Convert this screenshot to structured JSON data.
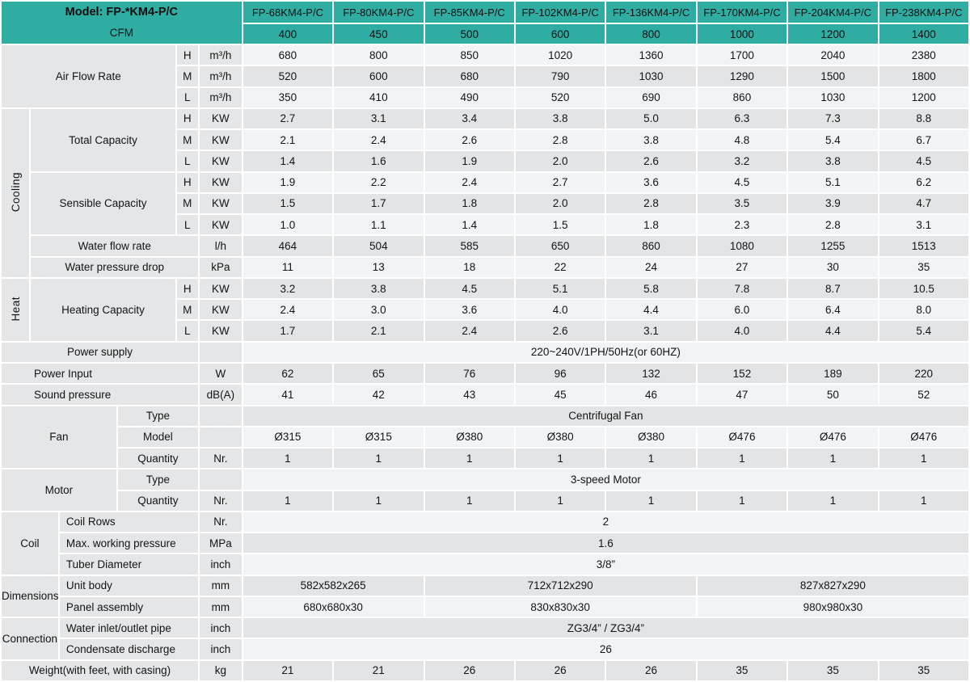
{
  "colors": {
    "header_teal": "#30ada3",
    "label_gray": "#e4e6e8",
    "row_light": "#f0f4f6",
    "row_dark": "#e2e4e6"
  },
  "header": {
    "model_label": "Model: FP-*KM4-P/C",
    "cfm_label": "CFM",
    "models": [
      "FP-68KM4-P/C",
      "FP-80KM4-P/C",
      "FP-85KM4-P/C",
      "FP-102KM4-P/C",
      "FP-136KM4-P/C",
      "FP-170KM4-P/C",
      "FP-204KM4-P/C",
      "FP-238KM4-P/C"
    ],
    "cfm_values": [
      "400",
      "450",
      "500",
      "600",
      "800",
      "1000",
      "1200",
      "1400"
    ]
  },
  "body": [
    {
      "name": "air-flow-rate-h",
      "cells": [
        {
          "t": "Air Flow Rate",
          "cs": 4,
          "rs": 3
        },
        {
          "t": "H"
        },
        {
          "t": "m³/h"
        }
      ],
      "data": {
        "values": [
          "680",
          "800",
          "850",
          "1020",
          "1360",
          "1700",
          "2040",
          "2380"
        ]
      }
    },
    {
      "name": "air-flow-rate-m",
      "cells": [
        {
          "t": "M"
        },
        {
          "t": "m³/h"
        }
      ],
      "data": {
        "values": [
          "520",
          "600",
          "680",
          "790",
          "1030",
          "1290",
          "1500",
          "1800"
        ]
      }
    },
    {
      "name": "air-flow-rate-l",
      "cells": [
        {
          "t": "L"
        },
        {
          "t": "m³/h"
        }
      ],
      "data": {
        "values": [
          "350",
          "410",
          "490",
          "520",
          "690",
          "860",
          "1030",
          "1200"
        ]
      }
    },
    {
      "name": "cooling-total-capacity-h",
      "cells": [
        {
          "t": "Cooling",
          "cls": "vlab",
          "rs": 8
        },
        {
          "t": "Total Capacity",
          "cs": 3,
          "rs": 3
        },
        {
          "t": "H"
        },
        {
          "t": "KW"
        }
      ],
      "data": {
        "values": [
          "2.7",
          "3.1",
          "3.4",
          "3.8",
          "5.0",
          "6.3",
          "7.3",
          "8.8"
        ]
      }
    },
    {
      "name": "cooling-total-capacity-m",
      "cells": [
        {
          "t": "M"
        },
        {
          "t": "KW"
        }
      ],
      "data": {
        "values": [
          "2.1",
          "2.4",
          "2.6",
          "2.8",
          "3.8",
          "4.8",
          "5.4",
          "6.7"
        ]
      }
    },
    {
      "name": "cooling-total-capacity-l",
      "cells": [
        {
          "t": "L"
        },
        {
          "t": "KW"
        }
      ],
      "data": {
        "values": [
          "1.4",
          "1.6",
          "1.9",
          "2.0",
          "2.6",
          "3.2",
          "3.8",
          "4.5"
        ]
      }
    },
    {
      "name": "cooling-sensible-capacity-h",
      "cells": [
        {
          "t": "Sensible Capacity",
          "cs": 3,
          "rs": 3
        },
        {
          "t": "H"
        },
        {
          "t": "KW"
        }
      ],
      "data": {
        "values": [
          "1.9",
          "2.2",
          "2.4",
          "2.7",
          "3.6",
          "4.5",
          "5.1",
          "6.2"
        ]
      }
    },
    {
      "name": "cooling-sensible-capacity-m",
      "cells": [
        {
          "t": "M"
        },
        {
          "t": "KW"
        }
      ],
      "data": {
        "values": [
          "1.5",
          "1.7",
          "1.8",
          "2.0",
          "2.8",
          "3.5",
          "3.9",
          "4.7"
        ]
      }
    },
    {
      "name": "cooling-sensible-capacity-l",
      "cells": [
        {
          "t": "L"
        },
        {
          "t": "KW"
        }
      ],
      "data": {
        "values": [
          "1.0",
          "1.1",
          "1.4",
          "1.5",
          "1.8",
          "2.3",
          "2.8",
          "3.1"
        ]
      }
    },
    {
      "name": "water-flow-rate",
      "cells": [
        {
          "t": "Water flow rate",
          "cs": 4
        },
        {
          "t": "l/h"
        }
      ],
      "data": {
        "values": [
          "464",
          "504",
          "585",
          "650",
          "860",
          "1080",
          "1255",
          "1513"
        ]
      }
    },
    {
      "name": "water-pressure-drop",
      "cells": [
        {
          "t": "Water pressure drop",
          "cs": 4
        },
        {
          "t": "kPa"
        }
      ],
      "data": {
        "values": [
          "11",
          "13",
          "18",
          "22",
          "24",
          "27",
          "30",
          "35"
        ]
      }
    },
    {
      "name": "heat-heating-capacity-h",
      "cells": [
        {
          "t": "Heat",
          "cls": "vlab",
          "rs": 3
        },
        {
          "t": "Heating Capacity",
          "cs": 3,
          "rs": 3
        },
        {
          "t": "H"
        },
        {
          "t": "KW"
        }
      ],
      "data": {
        "values": [
          "3.2",
          "3.8",
          "4.5",
          "5.1",
          "5.8",
          "7.8",
          "8.7",
          "10.5"
        ]
      }
    },
    {
      "name": "heat-heating-capacity-m",
      "cells": [
        {
          "t": "M"
        },
        {
          "t": "KW"
        }
      ],
      "data": {
        "values": [
          "2.4",
          "3.0",
          "3.6",
          "4.0",
          "4.4",
          "6.0",
          "6.4",
          "8.0"
        ]
      }
    },
    {
      "name": "heat-heating-capacity-l",
      "cells": [
        {
          "t": "L"
        },
        {
          "t": "KW"
        }
      ],
      "data": {
        "values": [
          "1.7",
          "2.1",
          "2.4",
          "2.6",
          "3.1",
          "4.0",
          "4.4",
          "5.4"
        ]
      }
    },
    {
      "name": "power-supply",
      "cells": [
        {
          "t": "Power supply",
          "cs": 5
        },
        {
          "t": ""
        }
      ],
      "data": {
        "spans": [
          {
            "text": "220~240V/1PH/50Hz(or 60HZ)",
            "cs": 8
          }
        ]
      }
    },
    {
      "name": "power-input",
      "cells": [
        {
          "t": "Power Input",
          "cs": 5,
          "cls": "lableft40"
        },
        {
          "t": "W"
        }
      ],
      "data": {
        "values": [
          "62",
          "65",
          "76",
          "96",
          "132",
          "152",
          "189",
          "220"
        ]
      }
    },
    {
      "name": "sound-pressure",
      "cells": [
        {
          "t": "Sound pressure",
          "cs": 5,
          "cls": "lableft40"
        },
        {
          "t": "dB(A)"
        }
      ],
      "data": {
        "values": [
          "41",
          "42",
          "43",
          "45",
          "46",
          "47",
          "50",
          "52"
        ]
      }
    },
    {
      "name": "fan-type",
      "cells": [
        {
          "t": "Fan",
          "cs": 3,
          "rs": 3
        },
        {
          "t": "Type",
          "cs": 2
        },
        {
          "t": ""
        }
      ],
      "data": {
        "spans": [
          {
            "text": "Centrifugal Fan",
            "cs": 8
          }
        ]
      }
    },
    {
      "name": "fan-model",
      "cells": [
        {
          "t": "Model",
          "cs": 2
        },
        {
          "t": ""
        }
      ],
      "data": {
        "values": [
          "Ø315",
          "Ø315",
          "Ø380",
          "Ø380",
          "Ø380",
          "Ø476",
          "Ø476",
          "Ø476"
        ]
      }
    },
    {
      "name": "fan-quantity",
      "cells": [
        {
          "t": "Quantity",
          "cs": 2
        },
        {
          "t": "Nr."
        }
      ],
      "data": {
        "values": [
          "1",
          "1",
          "1",
          "1",
          "1",
          "1",
          "1",
          "1"
        ]
      }
    },
    {
      "name": "motor-type",
      "cells": [
        {
          "t": "Motor",
          "cs": 3,
          "rs": 2
        },
        {
          "t": "Type",
          "cs": 2
        },
        {
          "t": ""
        }
      ],
      "data": {
        "spans": [
          {
            "text": "3-speed Motor",
            "cs": 8
          }
        ]
      }
    },
    {
      "name": "motor-quantity",
      "cells": [
        {
          "t": "Quantity",
          "cs": 2
        },
        {
          "t": "Nr."
        }
      ],
      "data": {
        "values": [
          "1",
          "1",
          "1",
          "1",
          "1",
          "1",
          "1",
          "1"
        ]
      }
    },
    {
      "name": "coil-rows",
      "cells": [
        {
          "t": "Coil",
          "cs": 2,
          "rs": 3
        },
        {
          "t": "Coil Rows",
          "cs": 3,
          "cls": "lableft"
        },
        {
          "t": "Nr."
        }
      ],
      "data": {
        "spans": [
          {
            "text": "2",
            "cs": 8
          }
        ]
      }
    },
    {
      "name": "coil-max-working-pressure",
      "cells": [
        {
          "t": "Max. working pressure",
          "cs": 3,
          "cls": "lableft"
        },
        {
          "t": "MPa"
        }
      ],
      "data": {
        "spans": [
          {
            "text": "1.6",
            "cs": 8
          }
        ]
      }
    },
    {
      "name": "coil-tuber-diameter",
      "cells": [
        {
          "t": "Tuber Diameter",
          "cs": 3,
          "cls": "lableft"
        },
        {
          "t": "inch"
        }
      ],
      "data": {
        "spans": [
          {
            "text": "3/8”",
            "cs": 8
          }
        ]
      }
    },
    {
      "name": "dimensions-unit-body",
      "cells": [
        {
          "t": "Dimensions",
          "cs": 2,
          "rs": 2
        },
        {
          "t": "Unit body",
          "cs": 3,
          "cls": "lableft"
        },
        {
          "t": "mm"
        }
      ],
      "data": {
        "spans": [
          {
            "text": "582x582x265",
            "cs": 2
          },
          {
            "text": "712x712x290",
            "cs": 3
          },
          {
            "text": "827x827x290",
            "cs": 3
          }
        ]
      }
    },
    {
      "name": "dimensions-panel-assembly",
      "cells": [
        {
          "t": "Panel assembly",
          "cs": 3,
          "cls": "lableft"
        },
        {
          "t": "mm"
        }
      ],
      "data": {
        "spans": [
          {
            "text": "680x680x30",
            "cs": 2
          },
          {
            "text": "830x830x30",
            "cs": 3
          },
          {
            "text": "980x980x30",
            "cs": 3
          }
        ]
      }
    },
    {
      "name": "connection-water-inlet-outlet-pipe",
      "cells": [
        {
          "t": "Connection",
          "cs": 2,
          "rs": 2
        },
        {
          "t": "Water inlet/outlet pipe",
          "cs": 3,
          "cls": "lableft"
        },
        {
          "t": "inch"
        }
      ],
      "data": {
        "spans": [
          {
            "text": "ZG3/4” / ZG3/4”",
            "cs": 8
          }
        ]
      }
    },
    {
      "name": "connection-condensate-discharge",
      "cells": [
        {
          "t": "Condensate discharge",
          "cs": 3,
          "cls": "lableft"
        },
        {
          "t": "inch"
        }
      ],
      "data": {
        "spans": [
          {
            "text": "26",
            "cs": 8
          }
        ]
      }
    },
    {
      "name": "weight",
      "cells": [
        {
          "t": "Weight(with feet, with casing)",
          "cs": 5
        },
        {
          "t": "kg"
        }
      ],
      "data": {
        "values": [
          "21",
          "21",
          "26",
          "26",
          "26",
          "35",
          "35",
          "35"
        ]
      }
    }
  ]
}
